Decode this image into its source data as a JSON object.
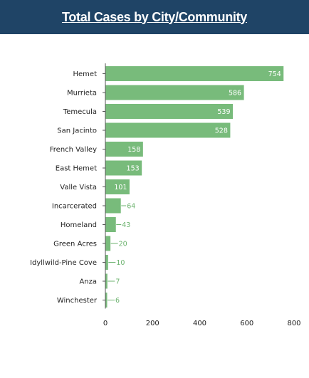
{
  "header": {
    "title": "Total Cases by City/Community"
  },
  "colors": {
    "header_bg": "#1f4466",
    "bar": "#78bb7b",
    "axis": "#555555",
    "value_outside": "#6db36f"
  },
  "chart_data": {
    "type": "bar",
    "orientation": "horizontal",
    "title": "",
    "xlabel": "",
    "ylabel": "",
    "categories": [
      "Hemet",
      "Murrieta",
      "Temecula",
      "San Jacinto",
      "French Valley",
      "East Hemet",
      "Valle Vista",
      "Incarcerated",
      "Homeland",
      "Green Acres",
      "Idyllwild-Pine Cove",
      "Anza",
      "Winchester"
    ],
    "values": [
      754,
      586,
      539,
      528,
      158,
      153,
      101,
      64,
      43,
      20,
      10,
      7,
      6
    ],
    "xlim": [
      0,
      800
    ],
    "xticks": [
      0,
      200,
      400,
      600,
      800
    ],
    "grid": false,
    "legend": "none"
  }
}
